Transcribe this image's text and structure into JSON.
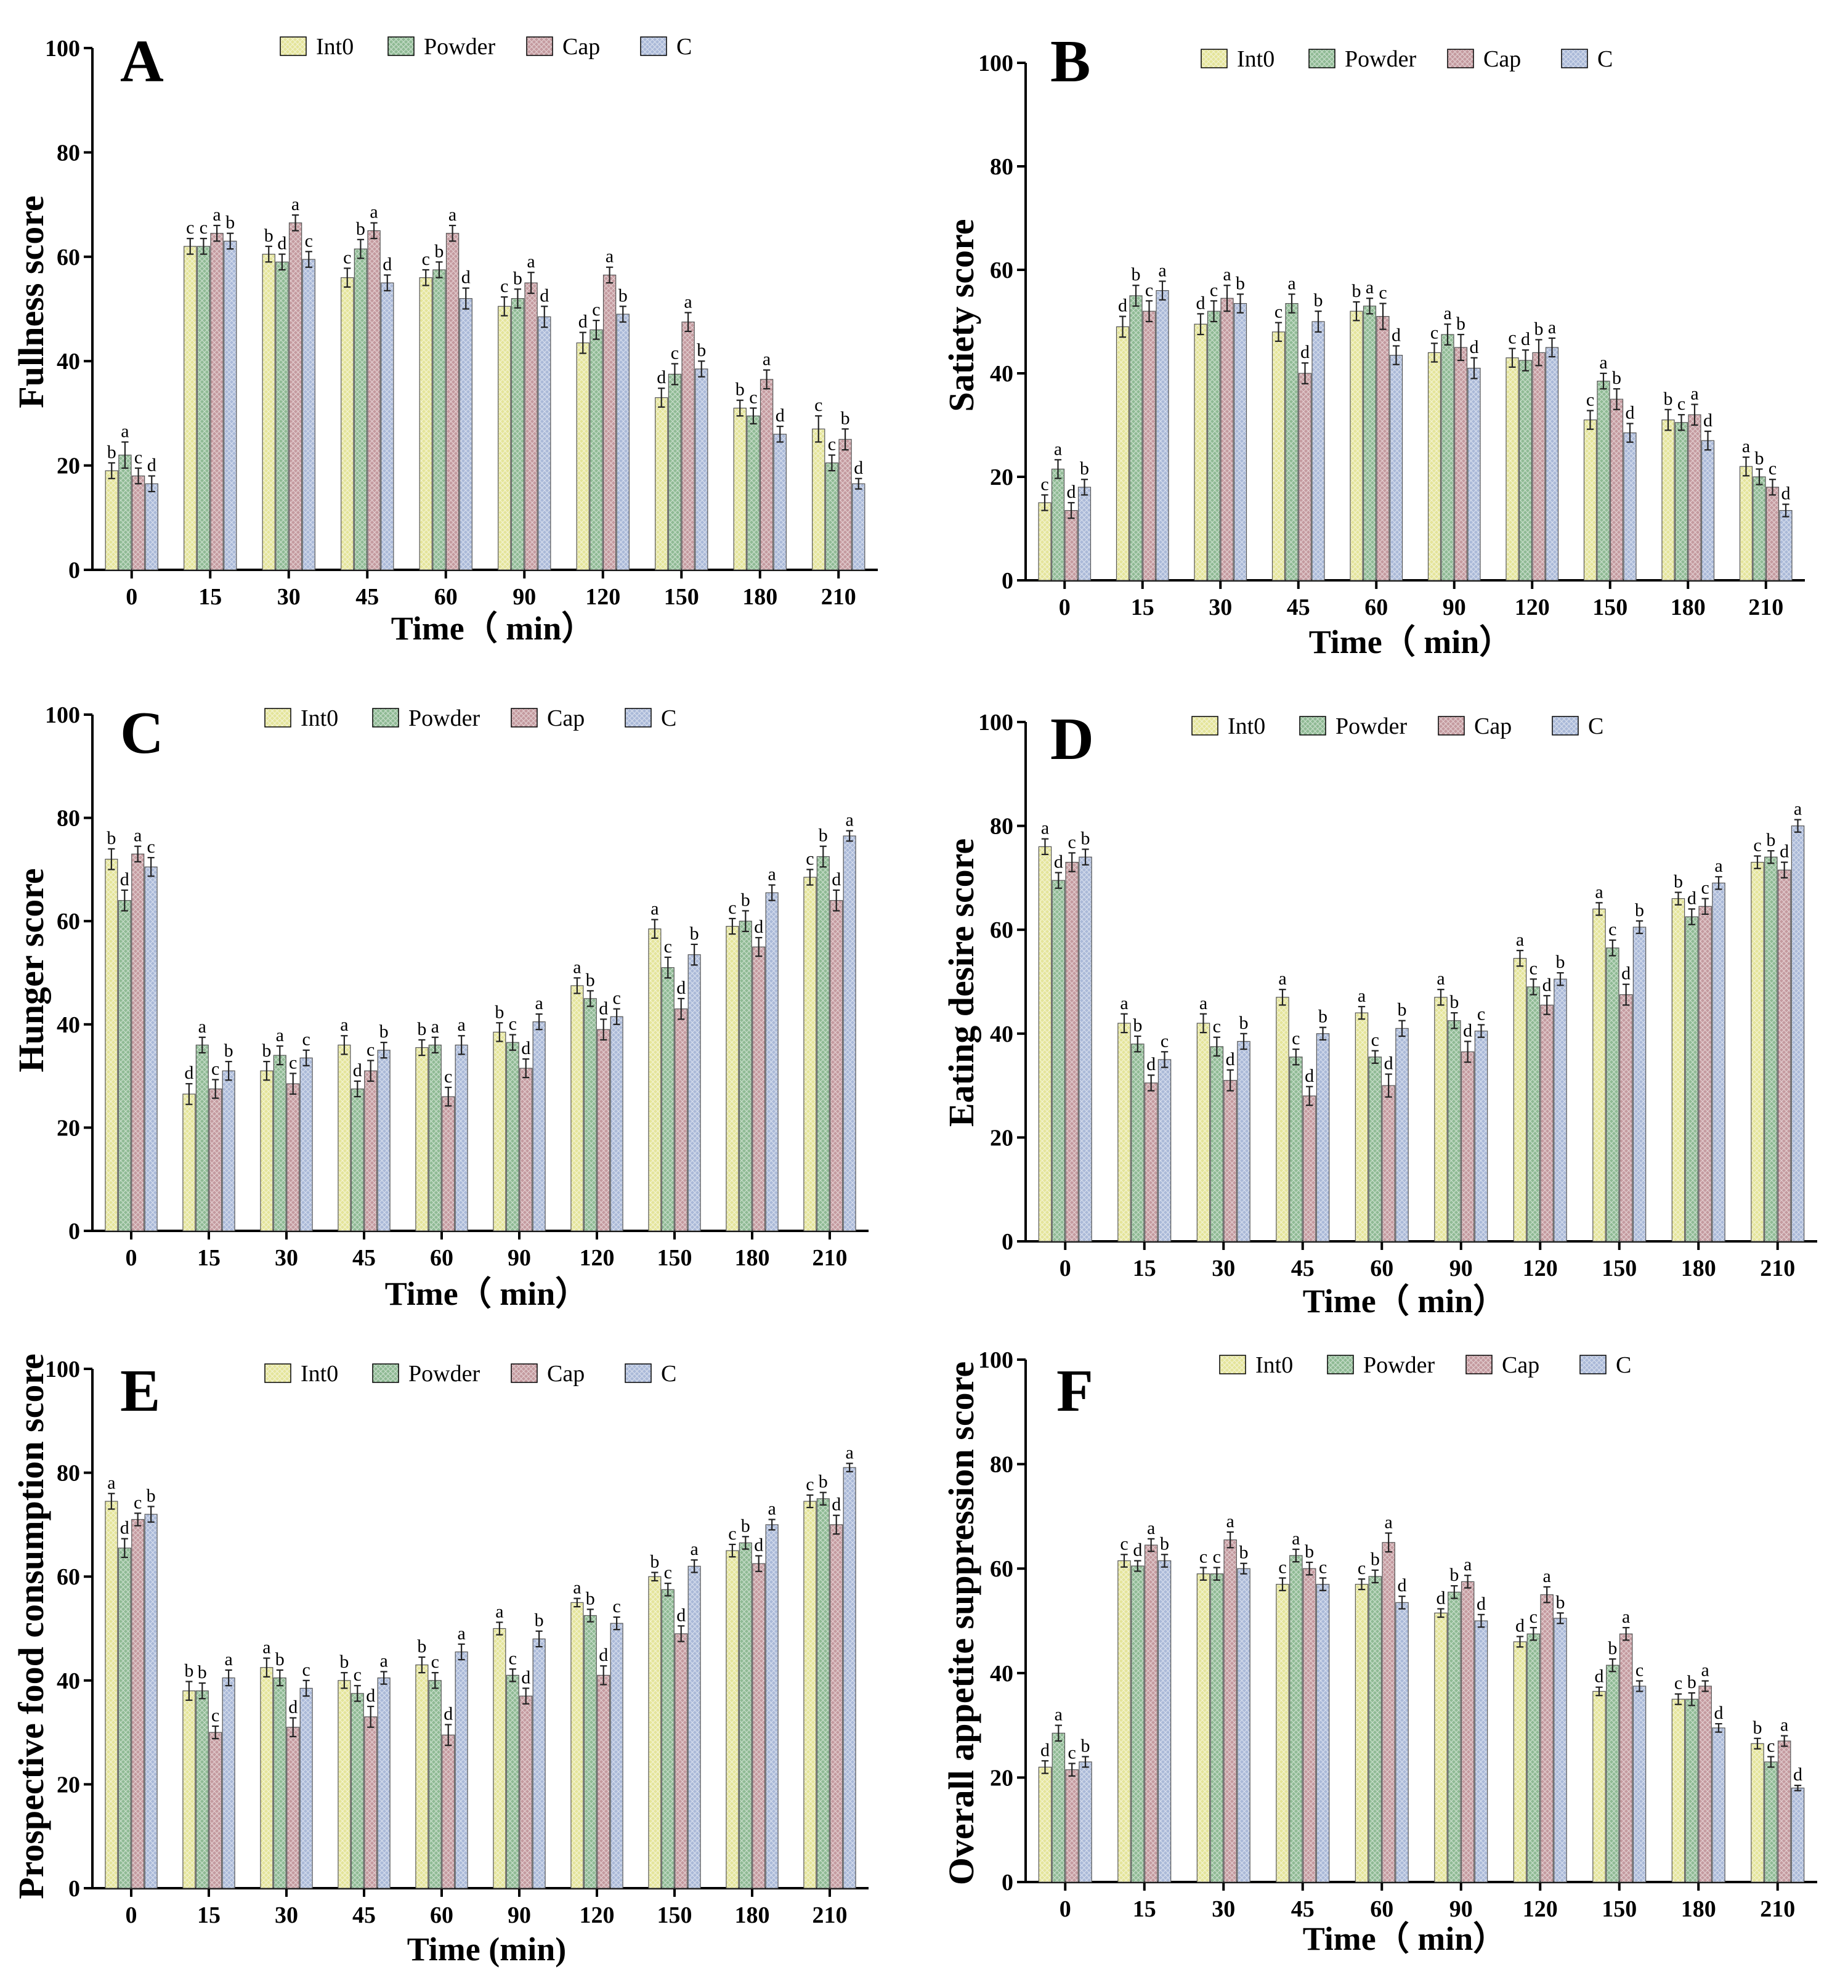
{
  "colors": {
    "Int0": "#e4e49a",
    "Powder": "#8fba94",
    "Cap": "#c49a9f",
    "C": "#aab9d8",
    "axis": "#000000"
  },
  "chart_data": [
    {
      "type": "bar",
      "panel": "A",
      "ylabel": "Fullness score",
      "xlabel": "Time（ min）",
      "categories": [
        "0",
        "15",
        "30",
        "45",
        "60",
        "90",
        "120",
        "150",
        "180",
        "210"
      ],
      "ylim": [
        0,
        100
      ],
      "yticks": [
        "0",
        "20",
        "40",
        "60",
        "80",
        "100"
      ],
      "legend": [
        "Int0",
        "Powder",
        "Cap",
        "C"
      ],
      "series": [
        {
          "name": "Int0",
          "values": [
            19,
            62,
            60.5,
            56,
            56,
            50.5,
            43.5,
            33,
            31,
            27
          ],
          "errors": [
            1.5,
            1.5,
            1.5,
            1.8,
            1.5,
            1.8,
            2,
            1.8,
            1.5,
            2.5
          ],
          "sig": [
            "b",
            "c",
            "b",
            "c",
            "c",
            "c",
            "d",
            "d",
            "b",
            "c"
          ]
        },
        {
          "name": "Powder",
          "values": [
            22,
            62,
            59,
            61.5,
            57.5,
            52,
            46,
            37.5,
            29.5,
            20.5
          ],
          "errors": [
            2.5,
            1.5,
            1.5,
            1.8,
            1.5,
            1.8,
            1.8,
            2,
            1.5,
            1.5
          ],
          "sig": [
            "a",
            "c",
            "d",
            "b",
            "b",
            "b",
            "c",
            "c",
            "c",
            "c"
          ]
        },
        {
          "name": "Cap",
          "values": [
            18,
            64.5,
            66.5,
            65,
            64.5,
            55,
            56.5,
            47.5,
            36.5,
            25
          ],
          "errors": [
            1.5,
            1.5,
            1.5,
            1.5,
            1.5,
            2,
            1.5,
            1.8,
            1.8,
            2
          ],
          "sig": [
            "c",
            "a",
            "a",
            "a",
            "a",
            "a",
            "a",
            "a",
            "a",
            "b"
          ]
        },
        {
          "name": "C",
          "values": [
            16.5,
            63,
            59.5,
            55,
            52,
            48.5,
            49,
            38.5,
            26,
            16.5
          ],
          "errors": [
            1.5,
            1.5,
            1.5,
            1.5,
            2,
            2,
            1.5,
            1.5,
            1.5,
            1
          ],
          "sig": [
            "d",
            "b",
            "c",
            "d",
            "d",
            "d",
            "b",
            "b",
            "d",
            "d"
          ]
        }
      ]
    },
    {
      "type": "bar",
      "panel": "B",
      "ylabel": "Satiety score",
      "xlabel": "Time（ min）",
      "categories": [
        "0",
        "15",
        "30",
        "45",
        "60",
        "90",
        "120",
        "150",
        "180",
        "210"
      ],
      "ylim": [
        0,
        100
      ],
      "yticks": [
        "0",
        "20",
        "40",
        "60",
        "80",
        "100"
      ],
      "legend": [
        "Int0",
        "Powder",
        "Cap",
        "C"
      ],
      "series": [
        {
          "name": "Int0",
          "values": [
            15,
            49,
            49.5,
            48,
            52,
            44,
            43,
            31,
            31,
            22
          ],
          "errors": [
            1.5,
            2,
            2,
            1.8,
            1.8,
            1.8,
            1.8,
            1.8,
            2,
            1.8
          ],
          "sig": [
            "c",
            "d",
            "d",
            "c",
            "b",
            "c",
            "c",
            "c",
            "b",
            "a"
          ]
        },
        {
          "name": "Powder",
          "values": [
            21.5,
            55,
            52,
            53.5,
            53,
            47.5,
            42.5,
            38.5,
            30.5,
            20
          ],
          "errors": [
            1.8,
            2,
            2,
            1.8,
            1.5,
            2,
            2,
            1.5,
            1.5,
            1.5
          ],
          "sig": [
            "a",
            "b",
            "c",
            "a",
            "a",
            "a",
            "d",
            "a",
            "c",
            "b"
          ]
        },
        {
          "name": "Cap",
          "values": [
            13.5,
            52,
            54.5,
            40,
            51,
            45,
            44,
            35,
            32,
            18
          ],
          "errors": [
            1.5,
            2,
            2.5,
            2,
            2.5,
            2.5,
            2.5,
            2,
            2,
            1.5
          ],
          "sig": [
            "d",
            "c",
            "a",
            "d",
            "c",
            "b",
            "b",
            "b",
            "a",
            "c"
          ]
        },
        {
          "name": "C",
          "values": [
            18,
            56,
            53.5,
            50,
            43.5,
            41,
            45,
            28.5,
            27,
            13.5
          ],
          "errors": [
            1.5,
            1.8,
            1.8,
            2,
            1.8,
            2,
            1.8,
            1.8,
            1.8,
            1.2
          ],
          "sig": [
            "b",
            "a",
            "b",
            "b",
            "d",
            "d",
            "a",
            "d",
            "d",
            "d"
          ]
        }
      ]
    },
    {
      "type": "bar",
      "panel": "C",
      "ylabel": "Hunger score",
      "xlabel": "Time（ min）",
      "categories": [
        "0",
        "15",
        "30",
        "45",
        "60",
        "90",
        "120",
        "150",
        "180",
        "210"
      ],
      "ylim": [
        0,
        100
      ],
      "yticks": [
        "0",
        "20",
        "40",
        "60",
        "80",
        "100"
      ],
      "legend": [
        "Int0",
        "Powder",
        "Cap",
        "C"
      ],
      "series": [
        {
          "name": "Int0",
          "values": [
            72,
            26.5,
            31,
            36,
            35.5,
            38.5,
            47.5,
            58.5,
            59,
            68.5
          ],
          "errors": [
            2,
            2,
            1.8,
            1.8,
            1.5,
            1.8,
            1.5,
            1.8,
            1.5,
            1.5
          ],
          "sig": [
            "b",
            "d",
            "b",
            "a",
            "b",
            "b",
            "a",
            "a",
            "c",
            "c"
          ]
        },
        {
          "name": "Powder",
          "values": [
            64,
            36,
            34,
            27.5,
            36,
            36.5,
            45,
            51,
            60,
            72.5
          ],
          "errors": [
            2,
            1.5,
            1.8,
            1.5,
            1.5,
            1.5,
            1.5,
            2,
            2,
            2
          ],
          "sig": [
            "d",
            "a",
            "a",
            "d",
            "a",
            "c",
            "b",
            "c",
            "b",
            "b"
          ]
        },
        {
          "name": "Cap",
          "values": [
            73,
            27.5,
            28.5,
            31,
            26,
            31.5,
            39,
            43,
            55,
            64
          ],
          "errors": [
            1.5,
            1.8,
            2,
            2,
            1.8,
            1.8,
            2,
            2,
            1.8,
            2
          ],
          "sig": [
            "a",
            "c",
            "c",
            "c",
            "c",
            "d",
            "d",
            "d",
            "d",
            "d"
          ]
        },
        {
          "name": "C",
          "values": [
            70.5,
            31,
            33.5,
            35,
            36,
            40.5,
            41.5,
            53.5,
            65.5,
            76.5
          ],
          "errors": [
            1.8,
            1.8,
            1.5,
            1.5,
            1.8,
            1.5,
            1.5,
            2,
            1.5,
            1
          ],
          "sig": [
            "c",
            "b",
            "c",
            "b",
            "a",
            "a",
            "c",
            "b",
            "a",
            "a"
          ]
        }
      ]
    },
    {
      "type": "bar",
      "panel": "D",
      "ylabel": "Eating desire score",
      "xlabel": "Time（ min）",
      "categories": [
        "0",
        "15",
        "30",
        "45",
        "60",
        "90",
        "120",
        "150",
        "180",
        "210"
      ],
      "ylim": [
        0,
        100
      ],
      "yticks": [
        "0",
        "20",
        "40",
        "60",
        "80",
        "100"
      ],
      "legend": [
        "Int0",
        "Powder",
        "Cap",
        "C"
      ],
      "series": [
        {
          "name": "Int0",
          "values": [
            76,
            42,
            42,
            47,
            44,
            47,
            54.5,
            64,
            66,
            73
          ],
          "errors": [
            1.5,
            1.8,
            1.8,
            1.5,
            1.2,
            1.5,
            1.5,
            1.2,
            1.2,
            1.2
          ],
          "sig": [
            "a",
            "a",
            "a",
            "a",
            "a",
            "a",
            "a",
            "a",
            "b",
            "c"
          ]
        },
        {
          "name": "Powder",
          "values": [
            69.5,
            38,
            37.5,
            35.5,
            35.5,
            42.5,
            49,
            56.5,
            62.5,
            74
          ],
          "errors": [
            1.5,
            1.5,
            1.8,
            1.5,
            1.2,
            1.5,
            1.5,
            1.5,
            1.5,
            1.2
          ],
          "sig": [
            "d",
            "b",
            "c",
            "c",
            "c",
            "b",
            "c",
            "c",
            "d",
            "b"
          ]
        },
        {
          "name": "Cap",
          "values": [
            73,
            30.5,
            31,
            28,
            30,
            36.5,
            45.5,
            47.5,
            64.5,
            71.5
          ],
          "errors": [
            1.8,
            1.5,
            2,
            1.8,
            2.2,
            2,
            1.8,
            2,
            1.5,
            1.5
          ],
          "sig": [
            "c",
            "d",
            "d",
            "d",
            "d",
            "d",
            "d",
            "d",
            "c",
            "d"
          ]
        },
        {
          "name": "C",
          "values": [
            74,
            35,
            38.5,
            40,
            41,
            40.5,
            50.5,
            60.5,
            69,
            80
          ],
          "errors": [
            1.5,
            1.5,
            1.5,
            1.2,
            1.5,
            1.2,
            1.2,
            1.2,
            1.2,
            1.2
          ],
          "sig": [
            "b",
            "c",
            "b",
            "b",
            "b",
            "c",
            "b",
            "b",
            "a",
            "a"
          ]
        }
      ]
    },
    {
      "type": "bar",
      "panel": "E",
      "ylabel": "Prospective food consumption score",
      "xlabel": "Time (min)",
      "categories": [
        "0",
        "15",
        "30",
        "45",
        "60",
        "90",
        "120",
        "150",
        "180",
        "210"
      ],
      "ylim": [
        0,
        100
      ],
      "yticks": [
        "0",
        "20",
        "40",
        "60",
        "80",
        "100"
      ],
      "legend": [
        "Int0",
        "Powder",
        "Cap",
        "C"
      ],
      "series": [
        {
          "name": "Int0",
          "values": [
            74.5,
            38,
            42.5,
            40,
            43,
            50,
            55,
            60,
            65,
            74.5
          ],
          "errors": [
            1.5,
            1.8,
            1.8,
            1.5,
            1.5,
            1.2,
            0.8,
            0.8,
            1.2,
            1.2
          ],
          "sig": [
            "a",
            "b",
            "a",
            "b",
            "b",
            "a",
            "a",
            "b",
            "c",
            "c"
          ]
        },
        {
          "name": "Powder",
          "values": [
            65.5,
            38,
            40.5,
            37.5,
            40,
            41,
            52.5,
            57.5,
            66.5,
            75
          ],
          "errors": [
            1.8,
            1.5,
            1.5,
            1.5,
            1.5,
            1.2,
            1.2,
            1.2,
            1.2,
            1.2
          ],
          "sig": [
            "d",
            "b",
            "b",
            "c",
            "c",
            "c",
            "b",
            "c",
            "b",
            "b"
          ]
        },
        {
          "name": "Cap",
          "values": [
            71,
            30,
            31,
            33,
            29.5,
            37,
            41,
            49,
            62.5,
            70
          ],
          "errors": [
            1.2,
            1.2,
            1.8,
            2,
            2,
            1.5,
            1.8,
            1.5,
            1.5,
            1.8
          ],
          "sig": [
            "c",
            "c",
            "d",
            "d",
            "d",
            "d",
            "d",
            "d",
            "d",
            "d"
          ]
        },
        {
          "name": "C",
          "values": [
            72,
            40.5,
            38.5,
            40.5,
            45.5,
            48,
            51,
            62,
            70,
            81
          ],
          "errors": [
            1.5,
            1.5,
            1.5,
            1.2,
            1.5,
            1.5,
            1.2,
            1.2,
            1,
            0.8
          ],
          "sig": [
            "b",
            "a",
            "c",
            "a",
            "a",
            "b",
            "c",
            "a",
            "a",
            "a"
          ]
        }
      ]
    },
    {
      "type": "bar",
      "panel": "F",
      "ylabel": "Overall appetite suppression score",
      "xlabel": "Time（ min）",
      "categories": [
        "0",
        "15",
        "30",
        "45",
        "60",
        "90",
        "120",
        "150",
        "180",
        "210"
      ],
      "ylim": [
        0,
        100
      ],
      "yticks": [
        "0",
        "20",
        "40",
        "60",
        "80",
        "100"
      ],
      "legend": [
        "Int0",
        "Powder",
        "Cap",
        "C"
      ],
      "series": [
        {
          "name": "Int0",
          "values": [
            22,
            61.5,
            59,
            57,
            57,
            51.5,
            46,
            36.5,
            35,
            26.5
          ],
          "errors": [
            1.2,
            1.2,
            1.2,
            1.2,
            1,
            0.8,
            1,
            0.8,
            1,
            1
          ],
          "sig": [
            "d",
            "c",
            "c",
            "c",
            "c",
            "d",
            "d",
            "d",
            "c",
            "b"
          ]
        },
        {
          "name": "Powder",
          "values": [
            28.5,
            60.5,
            59,
            62.5,
            58.5,
            55.5,
            47.5,
            41.5,
            35,
            23
          ],
          "errors": [
            1.5,
            1,
            1.2,
            1.2,
            1.2,
            1.2,
            1.2,
            1.2,
            1.2,
            1
          ],
          "sig": [
            "a",
            "d",
            "c",
            "a",
            "b",
            "b",
            "c",
            "b",
            "b",
            "c"
          ]
        },
        {
          "name": "Cap",
          "values": [
            21.5,
            64.5,
            65.5,
            60,
            65,
            57.5,
            55,
            47.5,
            37.5,
            27
          ],
          "errors": [
            1.2,
            1.2,
            1.5,
            1.2,
            1.8,
            1.2,
            1.5,
            1.2,
            1,
            1
          ],
          "sig": [
            "c",
            "a",
            "a",
            "b",
            "a",
            "a",
            "a",
            "a",
            "a",
            "a"
          ]
        },
        {
          "name": "C",
          "values": [
            23,
            61.5,
            60,
            57,
            53.5,
            50,
            50.5,
            37.5,
            29.5,
            18
          ],
          "errors": [
            1,
            1.2,
            1,
            1.2,
            1.2,
            1.2,
            1,
            1,
            0.8,
            0.5
          ],
          "sig": [
            "b",
            "b",
            "b",
            "c",
            "d",
            "d",
            "b",
            "c",
            "d",
            "d"
          ]
        }
      ]
    }
  ]
}
